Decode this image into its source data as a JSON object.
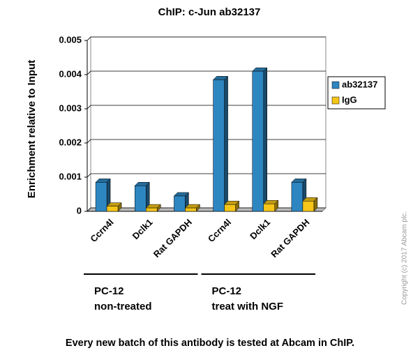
{
  "chart_data": {
    "type": "bar",
    "title": "ChIP: c-Jun  ab32137",
    "y_label": "Enrichment relative to Input",
    "categories": [
      "Ccrn4l",
      "Dclk1",
      "Rat GAPDH",
      "Ccrn4l",
      "Dclk1",
      "Rat GAPDH"
    ],
    "series": [
      {
        "name": "ab32137",
        "color": "#2e86c1",
        "values": [
          0.00085,
          0.00075,
          0.00045,
          0.00385,
          0.0041,
          0.00085
        ]
      },
      {
        "name": "IgG",
        "color": "#f5c518",
        "values": [
          0.00015,
          0.0001,
          0.0001,
          0.0002,
          0.00022,
          0.0003
        ]
      }
    ],
    "ylim": [
      0,
      0.005
    ],
    "yticks": [
      0,
      0.001,
      0.002,
      0.003,
      0.004,
      0.005
    ],
    "grid": true,
    "groups": [
      {
        "name": "PC-12",
        "detail": "non-treated"
      },
      {
        "name": "PC-12",
        "detail": "treat with NGF"
      }
    ],
    "copyright": "Copyright (c) 2017 Abcam plc.",
    "footer": "Every new batch of this antibody is tested at Abcam in ChIP."
  }
}
